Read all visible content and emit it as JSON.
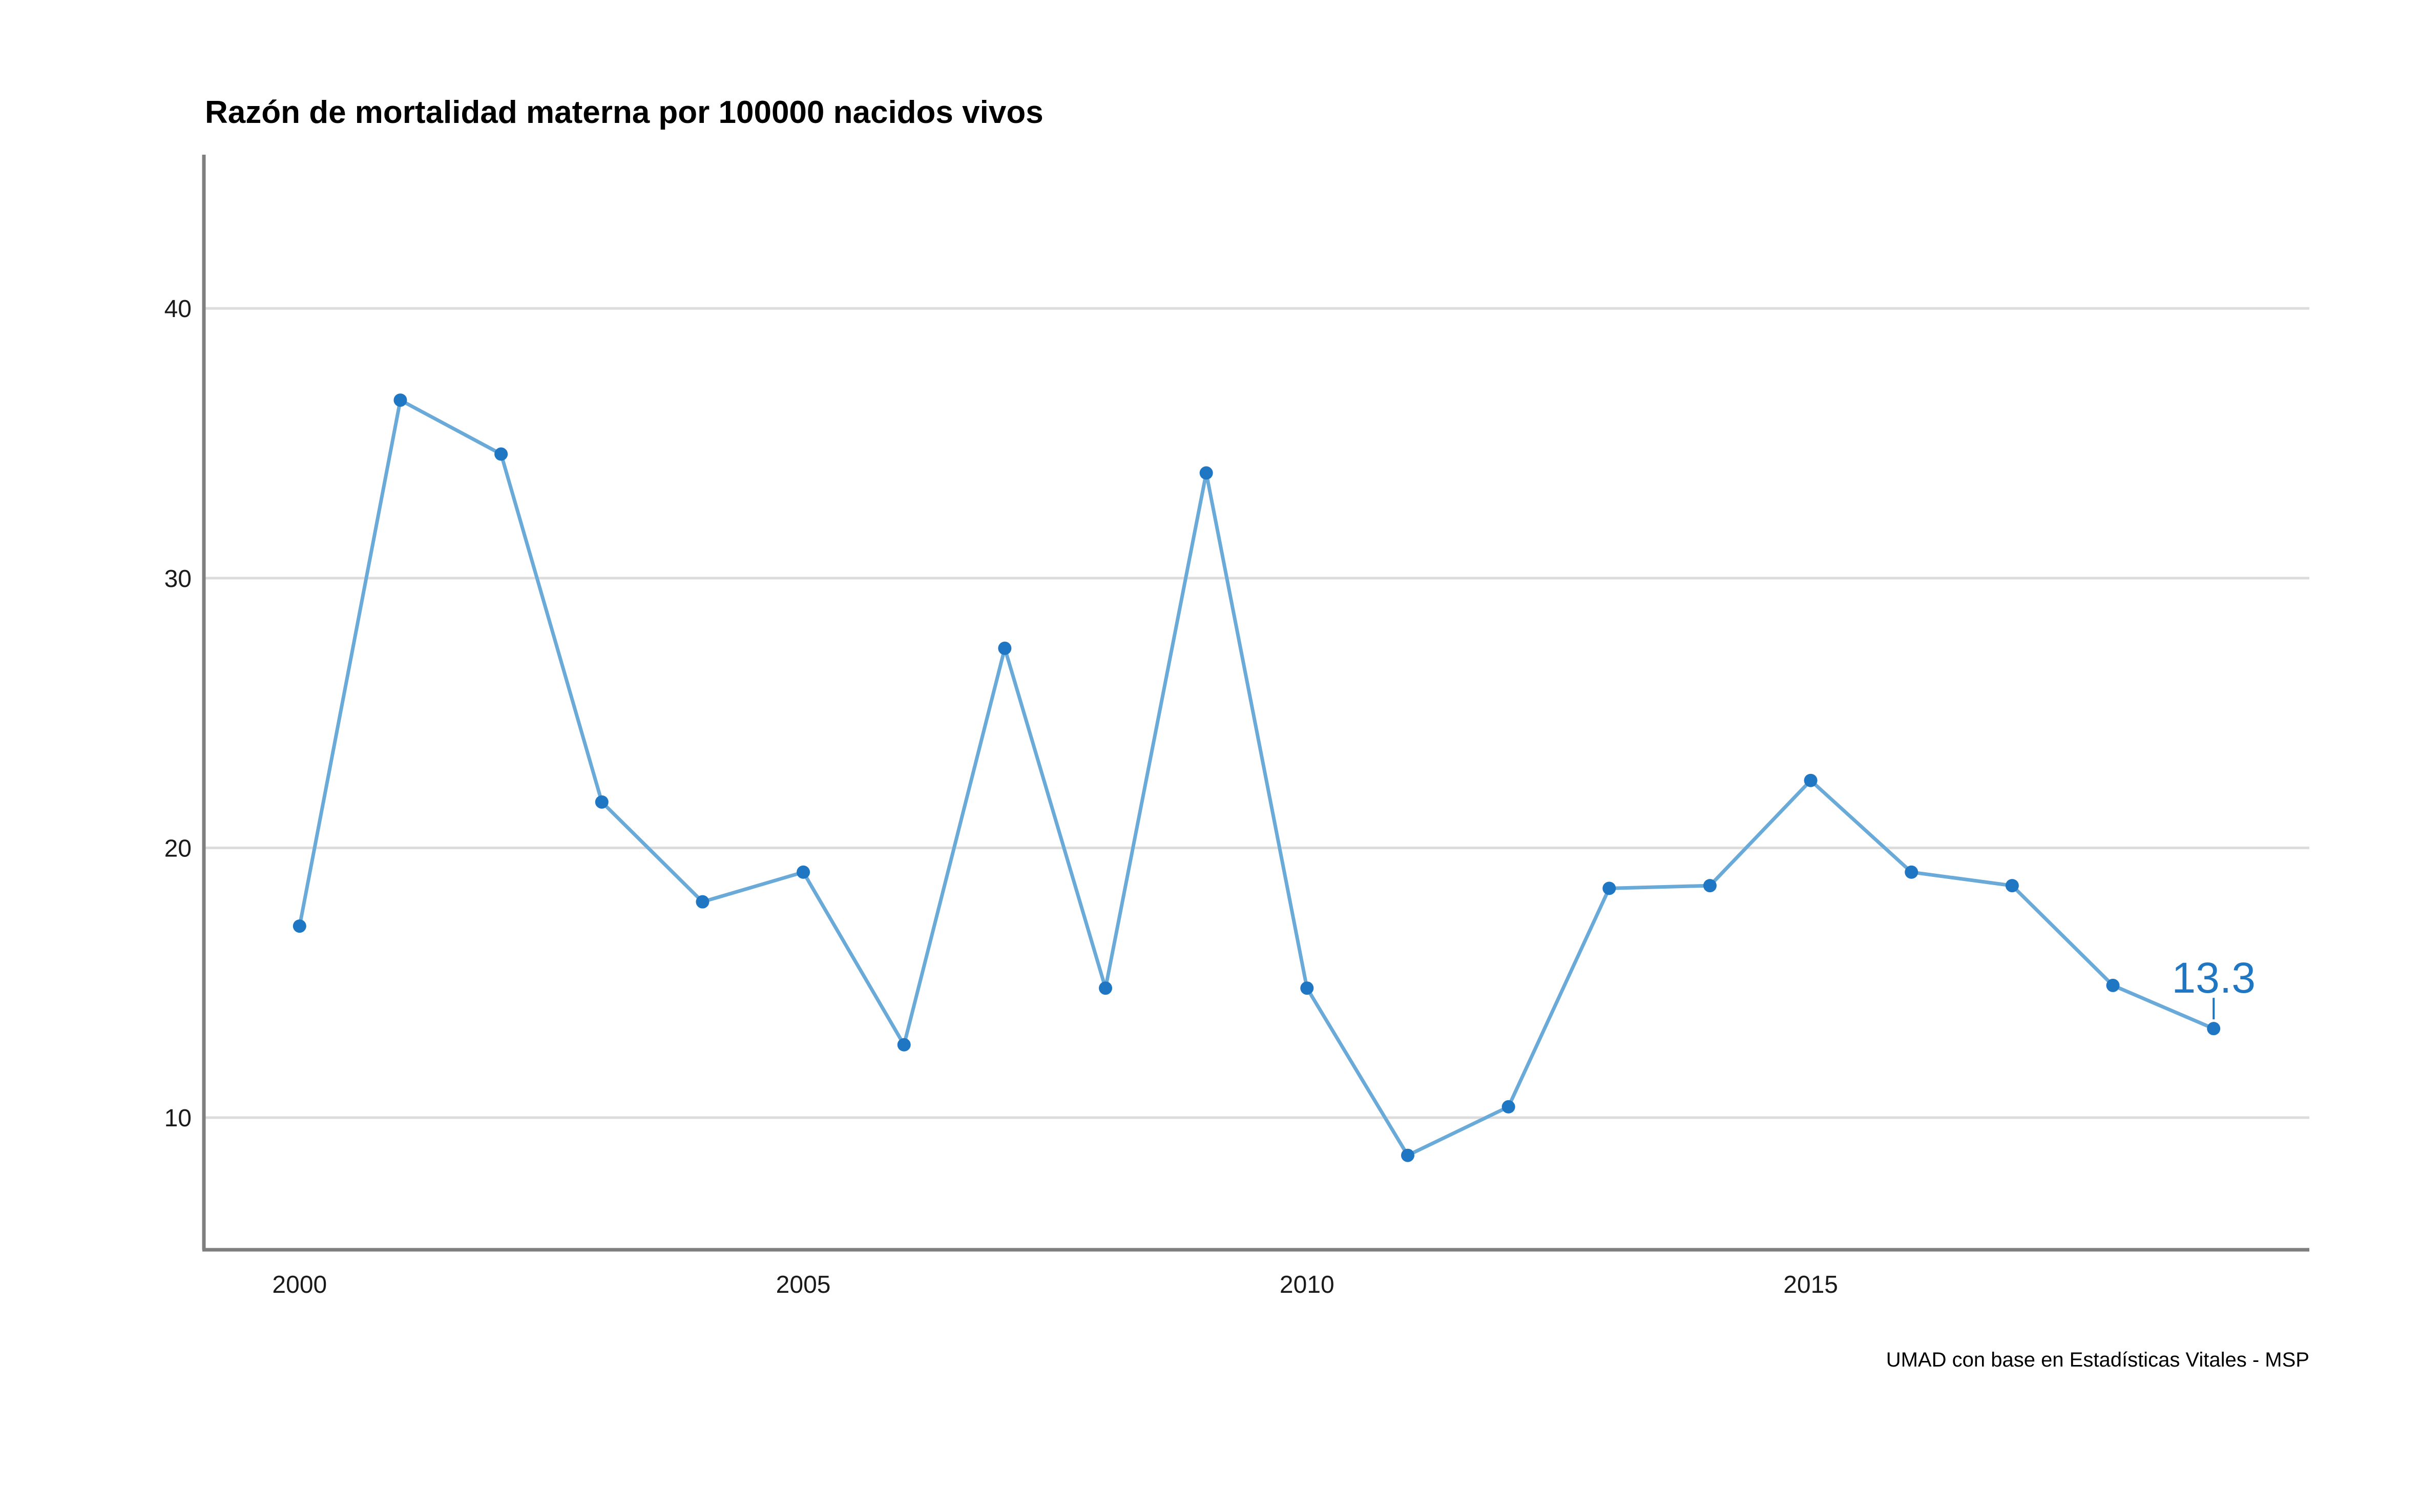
{
  "chart_data": {
    "type": "line",
    "title": "Razón de mortalidad materna por 100000 nacidos vivos",
    "caption": "UMAD con base en Estadísticas Vitales - MSP",
    "xlabel": "",
    "ylabel": "",
    "xlim": [
      1999.05,
      2019.95
    ],
    "ylim": [
      5.1,
      45.7
    ],
    "x_ticks": [
      2000,
      2005,
      2010,
      2015
    ],
    "y_ticks": [
      10,
      20,
      30,
      40
    ],
    "x_tick_labels": [
      "2000",
      "2005",
      "2010",
      "2015"
    ],
    "y_tick_labels": [
      "10",
      "20",
      "30",
      "40"
    ],
    "grid": "horizontal",
    "legend": "none",
    "line_color": "#6aaad8",
    "point_color": "#1f77c4",
    "series": [
      {
        "x": [
          2000,
          2001,
          2002,
          2003,
          2004,
          2005,
          2006,
          2007,
          2008,
          2009,
          2010,
          2011,
          2012,
          2013,
          2014,
          2015,
          2016,
          2017,
          2018,
          2019
        ],
        "values": [
          17.1,
          36.6,
          34.6,
          21.7,
          18.0,
          19.1,
          12.7,
          27.4,
          14.8,
          33.9,
          14.8,
          8.6,
          10.4,
          18.5,
          18.6,
          22.5,
          19.1,
          18.6,
          14.9,
          13.3
        ]
      }
    ],
    "annotations": [
      {
        "x": 2019,
        "y": 13.3,
        "text": "13.3"
      }
    ]
  }
}
